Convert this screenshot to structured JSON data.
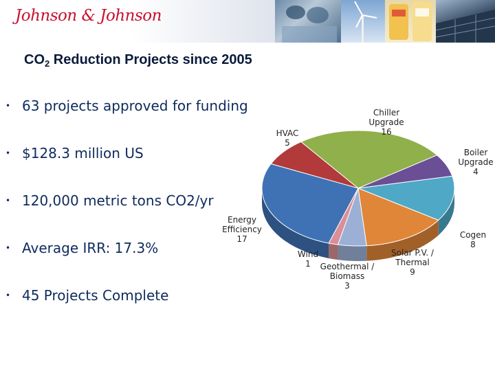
{
  "header": {
    "logo_text": "Johnson & Johnson",
    "brand_color": "#c8102e"
  },
  "title": {
    "main": "CO",
    "sub": "2",
    "rest": " Reduction Projects since 2005"
  },
  "bullets": [
    "63 projects approved for funding",
    "$128.3 million US",
    "120,000 metric tons CO2/yr",
    "Average IRR: 17.3%",
    "45 Projects Complete"
  ],
  "chart_data": {
    "type": "pie",
    "categories": [
      "HVAC",
      "Chiller Upgrade",
      "Boiler Upgrade",
      "Cogen",
      "Solar P.V. / Thermal",
      "Geothermal / Biomass",
      "Wind",
      "Energy Efficiency"
    ],
    "values": [
      5,
      16,
      4,
      8,
      9,
      3,
      1,
      17
    ],
    "colors": [
      "#b23a3a",
      "#8fb04a",
      "#6a4f96",
      "#4fa8c6",
      "#e08638",
      "#9cb0d6",
      "#d98f95",
      "#3f72b5"
    ],
    "label_lines": [
      [
        "HVAC",
        "5"
      ],
      [
        "Chiller",
        "Upgrade",
        "16"
      ],
      [
        "Boiler",
        "Upgrade",
        "4"
      ],
      [
        "Cogen",
        "8"
      ],
      [
        "Solar P.V. /",
        "Thermal",
        "9"
      ],
      [
        "Geothermal /",
        "Biomass",
        "3"
      ],
      [
        "Wind",
        "1"
      ],
      [
        "Energy",
        "Efficiency",
        "17"
      ]
    ]
  }
}
